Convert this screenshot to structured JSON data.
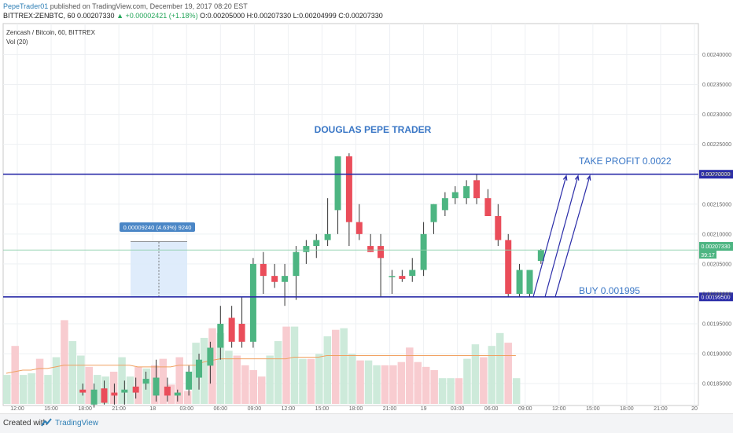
{
  "header": {
    "user": "PepeTrader01",
    "published": " published on TradingView.com, December 19, 2017 08:20 EST",
    "ohlc_prefix": "BITTREX:ZENBTC, 60  0.00207330 ",
    "change": "▲ +0.00002421 (+1.18%)",
    "ohlc_rest": " O:0.00205000 H:0.00207330 L:0.00204999 C:0.00207330"
  },
  "chart_panel": {
    "symbol": "Zencash / Bitcoin, 60, BITTREX",
    "volume_label": "Vol (20)",
    "current_price_label": "0.00207330",
    "countdown_label": "39:17",
    "measure_label": "0.00009240 (4.63%) 9240"
  },
  "annotations": {
    "title": "DOUGLAS PEPE TRADER",
    "take_profit": "TAKE PROFIT 0.0022",
    "buy": "BUY 0.001995"
  },
  "footer": {
    "created": "Created with",
    "brand": "TradingView"
  },
  "colors": {
    "up": "#4db582",
    "down": "#ea4d5a",
    "level_line": "#2a2ca8",
    "annotation_text": "#3a77c6",
    "price_badge": "#4db582"
  },
  "chart_data": {
    "type": "candlestick",
    "symbol": "BITTREX:ZENBTC",
    "timeframe": "60",
    "y_axis": {
      "range": [
        0.00182,
        0.00244
      ],
      "ticks": [
        "0.00240000",
        "0.00235000",
        "0.00230000",
        "0.00225000",
        "0.00220000",
        "0.00215000",
        "0.00210000",
        "0.00205000",
        "0.00200000",
        "0.00195000",
        "0.00190000",
        "0.00185000"
      ],
      "tick_values": [
        0.0024,
        0.00235,
        0.0023,
        0.00225,
        0.0022,
        0.00215,
        0.0021,
        0.00205,
        0.002,
        0.00195,
        0.0019,
        0.00185
      ]
    },
    "x_axis": {
      "ticks": [
        "12:00",
        "15:00",
        "18:00",
        "21:00",
        "18",
        "03:00",
        "06:00",
        "09:00",
        "12:00",
        "15:00",
        "18:00",
        "21:00",
        "19",
        "03:00",
        "06:00",
        "09:00",
        "12:00",
        "15:00",
        "18:00",
        "21:00",
        "20"
      ],
      "tick_index": [
        0,
        3,
        6,
        9,
        12,
        15,
        18,
        21,
        24,
        27,
        30,
        33,
        36,
        39,
        42,
        45,
        48,
        51,
        54,
        57,
        60
      ]
    },
    "candles": [
      {
        "i": 5.8,
        "o": 0.00184,
        "h": 0.00185,
        "l": 0.00183,
        "c": 0.001835
      },
      {
        "i": 6.8,
        "o": 0.001815,
        "h": 0.00185,
        "l": 0.00181,
        "c": 0.00184
      },
      {
        "i": 7.7,
        "o": 0.001842,
        "h": 0.001855,
        "l": 0.001815,
        "c": 0.001818
      },
      {
        "i": 8.6,
        "o": 0.001835,
        "h": 0.00185,
        "l": 0.001815,
        "c": 0.00183
      },
      {
        "i": 9.5,
        "o": 0.001835,
        "h": 0.001855,
        "l": 0.001815,
        "c": 0.00184
      },
      {
        "i": 10.5,
        "o": 0.001845,
        "h": 0.00186,
        "l": 0.001825,
        "c": 0.001835
      },
      {
        "i": 11.4,
        "o": 0.00185,
        "h": 0.00187,
        "l": 0.00184,
        "c": 0.001858
      },
      {
        "i": 12.3,
        "o": 0.00183,
        "h": 0.00189,
        "l": 0.00182,
        "c": 0.00186
      },
      {
        "i": 13.3,
        "o": 0.001845,
        "h": 0.00186,
        "l": 0.00182,
        "c": 0.00183
      },
      {
        "i": 14.2,
        "o": 0.00183,
        "h": 0.00184,
        "l": 0.00182,
        "c": 0.001835
      },
      {
        "i": 15.2,
        "o": 0.00184,
        "h": 0.00188,
        "l": 0.00183,
        "c": 0.00187
      },
      {
        "i": 16.1,
        "o": 0.00186,
        "h": 0.0019,
        "l": 0.00184,
        "c": 0.00189
      },
      {
        "i": 17.1,
        "o": 0.00188,
        "h": 0.00192,
        "l": 0.00185,
        "c": 0.00191
      },
      {
        "i": 18.0,
        "o": 0.00191,
        "h": 0.00198,
        "l": 0.00189,
        "c": 0.00195
      },
      {
        "i": 19.0,
        "o": 0.00196,
        "h": 0.00198,
        "l": 0.00191,
        "c": 0.00192
      },
      {
        "i": 19.9,
        "o": 0.00195,
        "h": 0.001995,
        "l": 0.00191,
        "c": 0.00192
      },
      {
        "i": 20.9,
        "o": 0.00192,
        "h": 0.00206,
        "l": 0.00191,
        "c": 0.00205
      },
      {
        "i": 21.8,
        "o": 0.00205,
        "h": 0.00207,
        "l": 0.002,
        "c": 0.00203
      },
      {
        "i": 22.8,
        "o": 0.00203,
        "h": 0.00205,
        "l": 0.00201,
        "c": 0.00202
      },
      {
        "i": 23.7,
        "o": 0.00202,
        "h": 0.00205,
        "l": 0.00198,
        "c": 0.00203
      },
      {
        "i": 24.7,
        "o": 0.00203,
        "h": 0.00208,
        "l": 0.00199,
        "c": 0.00207
      },
      {
        "i": 25.6,
        "o": 0.00207,
        "h": 0.00209,
        "l": 0.00205,
        "c": 0.00208
      },
      {
        "i": 26.5,
        "o": 0.00208,
        "h": 0.0021,
        "l": 0.00206,
        "c": 0.00209
      },
      {
        "i": 27.5,
        "o": 0.00209,
        "h": 0.00216,
        "l": 0.00208,
        "c": 0.0021
      },
      {
        "i": 28.4,
        "o": 0.00214,
        "h": 0.00223,
        "l": 0.0021,
        "c": 0.00223
      },
      {
        "i": 29.4,
        "o": 0.00223,
        "h": 0.002235,
        "l": 0.00208,
        "c": 0.00212
      },
      {
        "i": 30.3,
        "o": 0.00212,
        "h": 0.00215,
        "l": 0.00209,
        "c": 0.0021
      },
      {
        "i": 31.3,
        "o": 0.00208,
        "h": 0.0021,
        "l": 0.00207,
        "c": 0.00207
      },
      {
        "i": 32.2,
        "o": 0.00208,
        "h": 0.0021,
        "l": 0.001995,
        "c": 0.00206
      },
      {
        "i": 33.2,
        "o": 0.00203,
        "h": 0.00204,
        "l": 0.002,
        "c": 0.00203
      },
      {
        "i": 34.1,
        "o": 0.00203,
        "h": 0.00204,
        "l": 0.00202,
        "c": 0.002025
      },
      {
        "i": 35.0,
        "o": 0.00203,
        "h": 0.00206,
        "l": 0.00202,
        "c": 0.00204
      },
      {
        "i": 36.0,
        "o": 0.00204,
        "h": 0.00212,
        "l": 0.00203,
        "c": 0.0021
      },
      {
        "i": 36.9,
        "o": 0.00212,
        "h": 0.00215,
        "l": 0.0021,
        "c": 0.00215
      },
      {
        "i": 37.9,
        "o": 0.00214,
        "h": 0.00217,
        "l": 0.00213,
        "c": 0.00216
      },
      {
        "i": 38.8,
        "o": 0.00216,
        "h": 0.00218,
        "l": 0.00215,
        "c": 0.00217
      },
      {
        "i": 39.8,
        "o": 0.00216,
        "h": 0.00219,
        "l": 0.00215,
        "c": 0.00218
      },
      {
        "i": 40.7,
        "o": 0.00219,
        "h": 0.0022,
        "l": 0.00215,
        "c": 0.00216
      },
      {
        "i": 41.7,
        "o": 0.00216,
        "h": 0.002175,
        "l": 0.00213,
        "c": 0.00213
      },
      {
        "i": 42.6,
        "o": 0.00213,
        "h": 0.00215,
        "l": 0.00208,
        "c": 0.00209
      },
      {
        "i": 43.5,
        "o": 0.00209,
        "h": 0.0021,
        "l": 0.001995,
        "c": 0.002
      },
      {
        "i": 44.5,
        "o": 0.002,
        "h": 0.00205,
        "l": 0.001995,
        "c": 0.00204
      },
      {
        "i": 45.4,
        "o": 0.002,
        "h": 0.00204,
        "l": 0.001995,
        "c": 0.00204
      },
      {
        "i": 46.4,
        "o": 0.002055,
        "h": 0.002075,
        "l": 0.00205,
        "c": 0.002073
      }
    ],
    "volume": {
      "series": [
        {
          "name": "Vol (20)",
          "values": [
            18,
            36,
            18,
            19,
            28,
            18,
            29,
            52,
            39,
            30,
            23,
            18,
            17,
            20,
            29,
            17,
            23,
            22,
            24,
            28,
            12,
            29,
            8,
            38,
            41,
            47,
            44,
            33,
            30,
            24,
            21,
            17,
            30,
            39,
            48,
            48,
            28,
            28,
            31,
            42,
            46,
            47,
            31,
            27,
            27,
            24,
            24,
            24,
            26,
            35,
            26,
            23,
            21,
            16,
            16,
            16,
            28,
            37,
            29,
            36,
            44,
            38,
            16
          ]
        },
        {
          "name": "MA",
          "values": [
            19,
            20,
            21,
            21,
            22,
            22,
            23,
            24,
            24,
            24,
            24,
            24,
            24,
            24,
            24,
            24,
            23,
            23,
            23,
            23,
            23,
            24,
            24,
            24,
            26,
            27,
            28,
            28,
            28,
            28,
            28,
            28,
            28,
            28,
            28,
            29,
            29,
            29,
            29,
            30,
            30,
            30,
            30,
            30,
            30,
            30,
            30,
            30,
            30,
            30,
            30,
            30,
            30,
            30,
            30,
            30,
            30,
            30,
            30,
            30,
            30,
            30,
            30
          ]
        }
      ]
    },
    "levels": [
      {
        "label": "TAKE PROFIT 0.0022",
        "value": 0.0022
      },
      {
        "label": "BUY 0.001995",
        "value": 0.001995
      }
    ],
    "current_price": 0.0020733,
    "measure": {
      "from": 0.001995,
      "to": 0.0020874,
      "text": "0.00009240 (4.63%) 9240"
    }
  }
}
